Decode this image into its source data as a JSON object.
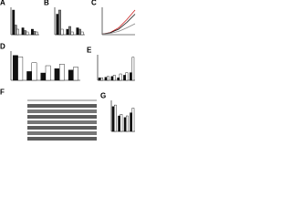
{
  "chart_data": [
    {
      "label": "A",
      "type": "bar",
      "categories": [
        null,
        null,
        null
      ],
      "ylim": [
        0,
        1
      ],
      "series": [
        {
          "color": "#111111",
          "values": [
            0.9,
            0.25,
            0.2
          ]
        },
        {
          "color": "#888888",
          "values": [
            0.35,
            0.15,
            0.12
          ]
        },
        {
          "color": "#ffffff",
          "values": [
            0.2,
            0.1,
            0.1
          ]
        }
      ]
    },
    {
      "label": "B",
      "type": "bar",
      "categories": [
        null,
        null,
        null
      ],
      "ylim": [
        0,
        1
      ],
      "series": [
        {
          "color": "#111111",
          "values": [
            0.75,
            0.2,
            0.25
          ]
        },
        {
          "color": "#888888",
          "values": [
            0.9,
            0.3,
            0.2
          ]
        },
        {
          "color": "#ffffff",
          "values": [
            0.2,
            0.1,
            0.1
          ]
        }
      ]
    },
    {
      "label": "C",
      "type": "line",
      "x": [
        0,
        1,
        2,
        3,
        4
      ],
      "xlim": [
        0,
        4
      ],
      "ylim": [
        0,
        1
      ],
      "series": [
        {
          "color": "#cc2222",
          "values": [
            0.02,
            0.08,
            0.25,
            0.55,
            0.9
          ]
        },
        {
          "color": "#111111",
          "values": [
            0.02,
            0.07,
            0.2,
            0.45,
            0.75
          ]
        },
        {
          "color": "#888888",
          "values": [
            0.02,
            0.05,
            0.12,
            0.25,
            0.4
          ]
        }
      ]
    },
    {
      "label": "D",
      "type": "bar",
      "categories": [
        null,
        null,
        null,
        null,
        null
      ],
      "ylim": [
        0,
        1
      ],
      "series": [
        {
          "color": "#111111",
          "values": [
            0.85,
            0.3,
            0.25,
            0.4,
            0.35
          ]
        },
        {
          "color": "#ffffff",
          "values": [
            0.8,
            0.6,
            0.5,
            0.55,
            0.45
          ]
        }
      ]
    },
    {
      "label": "E",
      "type": "bar",
      "categories": [
        null,
        null,
        null,
        null,
        null,
        null
      ],
      "ylim": [
        0,
        1
      ],
      "series": [
        {
          "color": "#111111",
          "values": [
            0.1,
            0.12,
            0.15,
            0.1,
            0.2,
            0.3
          ]
        },
        {
          "color": "#ffffff",
          "values": [
            0.1,
            0.15,
            0.2,
            0.25,
            0.3,
            0.9
          ]
        }
      ]
    },
    {
      "label": "F",
      "type": "blot"
    },
    {
      "label": "G",
      "type": "bar",
      "categories": [
        null,
        null,
        null,
        null
      ],
      "ylim": [
        0,
        1
      ],
      "series": [
        {
          "color": "#111111",
          "values": [
            0.8,
            0.5,
            0.45,
            0.6
          ]
        },
        {
          "color": "#ffffff",
          "values": [
            0.85,
            0.55,
            0.5,
            0.75
          ]
        }
      ]
    }
  ]
}
